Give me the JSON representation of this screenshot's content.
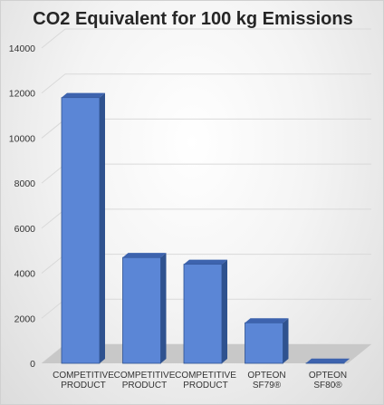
{
  "chart_data": {
    "type": "bar",
    "title": "CO2 Equivalent for 100 kg Emissions",
    "categories": [
      [
        "COMPETITIVE",
        "PRODUCT"
      ],
      [
        "COMPETITIVE",
        "PRODUCT"
      ],
      [
        "COMPETITIVE",
        "PRODUCT"
      ],
      [
        "OPTEON",
        "SF79®"
      ],
      [
        "OPTEON",
        "SF80®"
      ]
    ],
    "values": [
      11800,
      4700,
      4400,
      1800,
      10
    ],
    "ylim": [
      0,
      14000
    ],
    "yticks": [
      0,
      2000,
      4000,
      6000,
      8000,
      10000,
      12000,
      14000
    ],
    "grid": true,
    "legend": "none",
    "bar_color": "#4472c4"
  }
}
